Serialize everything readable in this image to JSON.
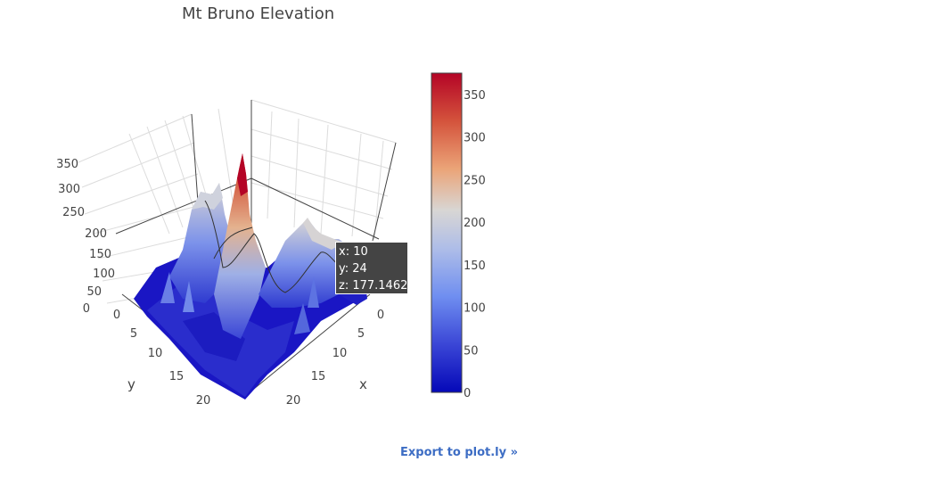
{
  "chart_data": {
    "type": "surface",
    "title": "Mt Bruno Elevation",
    "axes": {
      "x": {
        "label": "x",
        "ticks": [
          "0",
          "5",
          "10",
          "15",
          "20"
        ]
      },
      "y": {
        "label": "y",
        "ticks": [
          "0",
          "5",
          "10",
          "15",
          "20"
        ]
      },
      "z": {
        "ticks": [
          "0",
          "50",
          "100",
          "150",
          "200",
          "250",
          "300",
          "350"
        ]
      }
    },
    "grid": true,
    "colorscale": {
      "min": 0,
      "max": 375,
      "ticks": [
        "0",
        "50",
        "100",
        "150",
        "200",
        "250",
        "300",
        "350"
      ],
      "tick_values": [
        0,
        50,
        100,
        150,
        200,
        250,
        300,
        350
      ],
      "colors": [
        "#0508b8",
        "#4d63e3",
        "#7895f2",
        "#cfd3dd",
        "#e8936a",
        "#c0392b",
        "#b40426"
      ]
    },
    "hover": {
      "x_text": "x: 10",
      "y_text": "y: 24",
      "z_text": "z: 177.1462",
      "x": 10,
      "y": 24,
      "z": 177.1462
    }
  },
  "export_link": "Export to plot.ly »"
}
